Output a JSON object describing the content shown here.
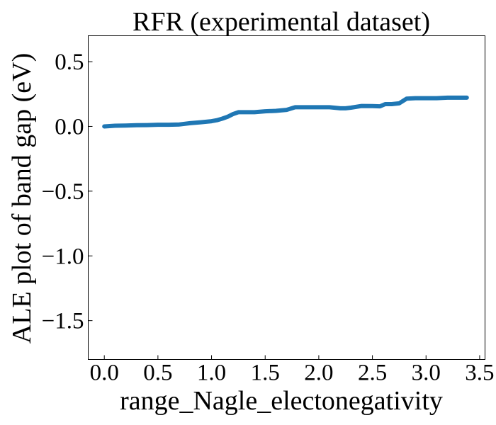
{
  "chart_data": {
    "type": "line",
    "title": "RFR (experimental dataset)",
    "xlabel": "range_Nagle_electonegativity",
    "ylabel": "ALE plot of band gap (eV)",
    "xlim": [
      -0.15,
      3.55
    ],
    "ylim": [
      -1.8,
      0.7
    ],
    "xticks": [
      0.0,
      0.5,
      1.0,
      1.5,
      2.0,
      2.5,
      3.0,
      3.5
    ],
    "xtick_labels": [
      "0.0",
      "0.5",
      "1.0",
      "1.5",
      "2.0",
      "2.5",
      "3.0",
      "3.5"
    ],
    "yticks": [
      0.5,
      0.0,
      -0.5,
      -1.0,
      -1.5
    ],
    "ytick_labels": [
      "0.5",
      "0.0",
      "−0.5",
      "−1.0",
      "−1.5"
    ],
    "grid": false,
    "series": [
      {
        "color": "#1f77b4",
        "x": [
          0.0,
          0.1,
          0.2,
          0.3,
          0.4,
          0.5,
          0.6,
          0.7,
          0.8,
          0.9,
          1.0,
          1.05,
          1.1,
          1.15,
          1.2,
          1.25,
          1.28,
          1.4,
          1.5,
          1.6,
          1.7,
          1.78,
          1.9,
          2.0,
          2.1,
          2.2,
          2.25,
          2.3,
          2.4,
          2.5,
          2.57,
          2.62,
          2.68,
          2.75,
          2.82,
          2.9,
          3.0,
          3.1,
          3.2,
          3.3,
          3.38
        ],
        "y": [
          0.0,
          0.005,
          0.007,
          0.009,
          0.01,
          0.013,
          0.013,
          0.015,
          0.025,
          0.032,
          0.04,
          0.048,
          0.06,
          0.075,
          0.095,
          0.11,
          0.11,
          0.11,
          0.117,
          0.12,
          0.128,
          0.148,
          0.148,
          0.148,
          0.148,
          0.14,
          0.14,
          0.145,
          0.158,
          0.157,
          0.155,
          0.172,
          0.172,
          0.178,
          0.215,
          0.218,
          0.218,
          0.218,
          0.222,
          0.222,
          0.222
        ]
      }
    ]
  }
}
